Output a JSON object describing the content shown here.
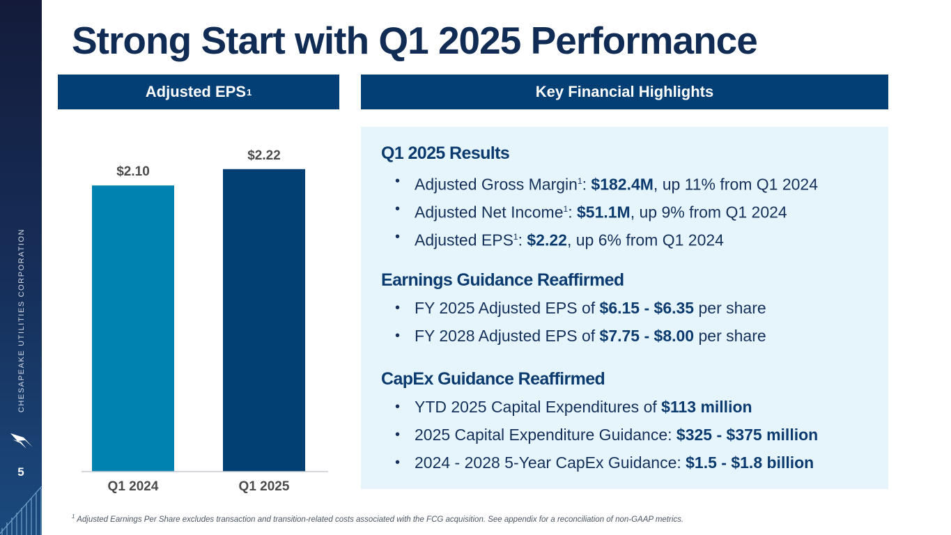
{
  "slide": {
    "title": "Strong Start with Q1 2025 Performance",
    "page_number": "5",
    "company_vertical": "CHESAPEAKE UTILITIES CORPORATION",
    "logo_icon": "bird-logo-icon"
  },
  "headers": {
    "left": "Adjusted EPS",
    "left_sup": "1",
    "right": "Key Financial Highlights"
  },
  "chart_data": {
    "type": "bar",
    "title": "Adjusted EPS",
    "categories": [
      "Q1 2024",
      "Q1 2025"
    ],
    "values": [
      2.1,
      2.22
    ],
    "value_labels": [
      "$2.10",
      "$2.22"
    ],
    "colors": [
      "#0082b0",
      "#023f73"
    ],
    "ylim": [
      0,
      2.5
    ],
    "xlabel": "",
    "ylabel": "",
    "grid": false
  },
  "highlights": {
    "results": {
      "title": "Q1 2025 Results",
      "items": [
        {
          "pre": "Adjusted Gross Margin",
          "sup": "1",
          "mid": ": ",
          "bold": "$182.4M",
          "post": ", up 11% from Q1 2024"
        },
        {
          "pre": "Adjusted Net Income",
          "sup": "1",
          "mid": ": ",
          "bold": "$51.1M",
          "post": ", up 9% from Q1 2024"
        },
        {
          "pre": "Adjusted EPS",
          "sup": "1",
          "mid": ": ",
          "bold": "$2.22",
          "post": ", up 6% from Q1 2024"
        }
      ]
    },
    "earnings": {
      "title": "Earnings Guidance Reaffirmed",
      "items": [
        {
          "pre": "FY 2025 Adjusted EPS of ",
          "bold": "$6.15 - $6.35",
          "post": " per share"
        },
        {
          "pre": "FY 2028 Adjusted EPS of ",
          "bold": "$7.75 - $8.00",
          "post": " per share"
        }
      ]
    },
    "capex": {
      "title": "CapEx Guidance Reaffirmed",
      "items": [
        {
          "pre": "YTD 2025 Capital Expenditures of ",
          "bold": "$113 million",
          "post": ""
        },
        {
          "pre": "2025 Capital Expenditure Guidance: ",
          "bold": "$325 - $375 million",
          "post": ""
        },
        {
          "pre": "2024 - 2028 5-Year CapEx Guidance: ",
          "bold": "$1.5 - $1.8 billion",
          "post": ""
        }
      ]
    }
  },
  "footnote": {
    "sup": "1",
    "text": "Adjusted Earnings Per Share excludes transaction and transition-related costs associated with the FCG acquisition. See appendix for a reconciliation of non-GAAP metrics."
  }
}
